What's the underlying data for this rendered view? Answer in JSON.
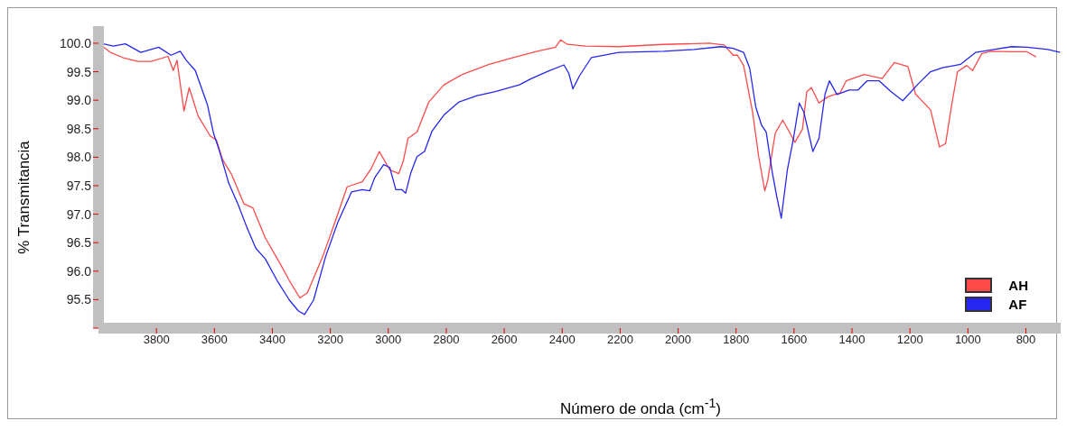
{
  "chart_data": {
    "type": "line",
    "xlabel": "Número de onda (cm$^{-1}$)",
    "ylabel": "% Transmitancia",
    "xlim": [
      4000,
      680
    ],
    "xticks": [
      3800,
      3600,
      3400,
      3200,
      3000,
      2800,
      2600,
      2400,
      2200,
      2000,
      1800,
      1600,
      1400,
      1200,
      1000,
      800
    ],
    "ylim": [
      95.0,
      100.3
    ],
    "yticks": [
      {
        "value": 95,
        "label": null
      },
      95.5,
      {
        "value": 96,
        "label": "96.0"
      },
      96.5,
      {
        "value": 97,
        "label": "97.0"
      },
      97.5,
      {
        "value": 98,
        "label": "98.0"
      },
      98.5,
      {
        "value": 99,
        "label": "99.0"
      },
      99.5,
      {
        "value": 100,
        "label": "100.0"
      }
    ],
    "legend": "bottom right",
    "marker": "none",
    "line_style": "solid",
    "series": [
      {
        "name": "AH",
        "color": "#ff4a4a",
        "x": [
          4000,
          3959,
          3917,
          3865,
          3818,
          3760,
          3742,
          3729,
          3705,
          3687,
          3656,
          3614,
          3593,
          3572,
          3540,
          3498,
          3467,
          3425,
          3373,
          3341,
          3305,
          3279,
          3226,
          3184,
          3142,
          3090,
          3059,
          3031,
          2995,
          2964,
          2948,
          2932,
          2901,
          2860,
          2808,
          2745,
          2652,
          2569,
          2486,
          2423,
          2405,
          2382,
          2320,
          2205,
          2049,
          1893,
          1841,
          1810,
          1795,
          1774,
          1743,
          1722,
          1701,
          1691,
          1665,
          1639,
          1618,
          1597,
          1571,
          1556,
          1540,
          1514,
          1483,
          1441,
          1420,
          1358,
          1296,
          1254,
          1207,
          1181,
          1129,
          1098,
          1077,
          1056,
          1036,
          1004,
          984,
          952,
          921,
          848,
          796,
          765
        ],
        "values": [
          100.0,
          99.84,
          99.75,
          99.68,
          99.68,
          99.77,
          99.52,
          99.7,
          98.81,
          99.22,
          98.72,
          98.37,
          98.3,
          97.96,
          97.69,
          97.18,
          97.11,
          96.59,
          96.13,
          95.83,
          95.53,
          95.62,
          96.26,
          96.86,
          97.48,
          97.57,
          97.8,
          98.1,
          97.78,
          97.71,
          97.94,
          98.33,
          98.44,
          98.97,
          99.27,
          99.45,
          99.63,
          99.75,
          99.86,
          99.93,
          100.06,
          99.98,
          99.95,
          99.94,
          99.98,
          100.0,
          99.97,
          99.79,
          99.79,
          99.61,
          98.79,
          98.01,
          97.41,
          97.59,
          98.42,
          98.65,
          98.46,
          98.26,
          98.49,
          99.15,
          99.22,
          98.95,
          99.06,
          99.13,
          99.34,
          99.45,
          99.38,
          99.66,
          99.59,
          99.11,
          98.83,
          98.18,
          98.24,
          98.92,
          99.5,
          99.61,
          99.52,
          99.82,
          99.86,
          99.85,
          99.85,
          99.76
        ]
      },
      {
        "name": "AF",
        "color": "#2626f0",
        "x": [
          4000,
          3949,
          3907,
          3854,
          3792,
          3750,
          3718,
          3697,
          3666,
          3645,
          3624,
          3603,
          3582,
          3551,
          3519,
          3488,
          3457,
          3425,
          3383,
          3341,
          3310,
          3289,
          3258,
          3216,
          3174,
          3127,
          3090,
          3064,
          3047,
          3016,
          2995,
          2974,
          2953,
          2940,
          2922,
          2901,
          2875,
          2849,
          2808,
          2756,
          2694,
          2631,
          2548,
          2506,
          2444,
          2394,
          2377,
          2363,
          2340,
          2299,
          2205,
          2049,
          1945,
          1852,
          1810,
          1774,
          1753,
          1732,
          1712,
          1696,
          1675,
          1660,
          1644,
          1623,
          1602,
          1582,
          1566,
          1535,
          1514,
          1493,
          1478,
          1452,
          1410,
          1379,
          1348,
          1306,
          1265,
          1225,
          1171,
          1129,
          1088,
          1025,
          973,
          911,
          848,
          796,
          724,
          682
        ],
        "values": [
          100.01,
          99.95,
          99.99,
          99.84,
          99.93,
          99.79,
          99.86,
          99.7,
          99.52,
          99.22,
          98.92,
          98.42,
          98.1,
          97.55,
          97.18,
          96.77,
          96.4,
          96.22,
          95.83,
          95.49,
          95.3,
          95.24,
          95.49,
          96.26,
          96.86,
          97.39,
          97.43,
          97.41,
          97.64,
          97.87,
          97.82,
          97.43,
          97.43,
          97.37,
          97.73,
          98.01,
          98.1,
          98.46,
          98.74,
          98.97,
          99.08,
          99.15,
          99.27,
          99.38,
          99.52,
          99.62,
          99.47,
          99.2,
          99.43,
          99.75,
          99.84,
          99.86,
          99.89,
          99.94,
          99.91,
          99.84,
          99.56,
          98.88,
          98.56,
          98.44,
          97.73,
          97.32,
          96.93,
          97.78,
          98.33,
          98.95,
          98.79,
          98.1,
          98.33,
          99.11,
          99.34,
          99.1,
          99.18,
          99.18,
          99.34,
          99.34,
          99.15,
          98.99,
          99.29,
          99.5,
          99.57,
          99.63,
          99.84,
          99.89,
          99.94,
          99.93,
          99.89,
          99.84
        ]
      }
    ]
  }
}
